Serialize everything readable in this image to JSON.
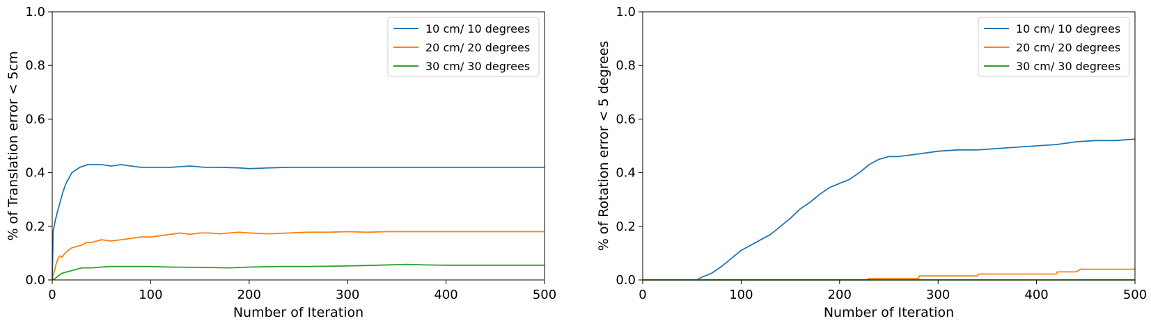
{
  "colors": {
    "c0": "#1f77b4",
    "c1": "#ff7f0e",
    "c2": "#2ca02c"
  },
  "chart_data": [
    {
      "type": "line",
      "xlabel": "Number of Iteration",
      "ylabel": "% of Translation error < 5cm",
      "xlim": [
        0,
        500
      ],
      "ylim": [
        0,
        1.0
      ],
      "xticks": [
        "0",
        "100",
        "200",
        "300",
        "400",
        "500"
      ],
      "yticks": [
        "0.0",
        "0.2",
        "0.4",
        "0.6",
        "0.8",
        "1.0"
      ],
      "grid": false,
      "legend_position": "top-right",
      "series": [
        {
          "name": "10 cm/ 10 degrees",
          "color": "#1f77b4",
          "x": [
            0,
            1,
            3,
            5,
            8,
            11,
            14,
            17,
            20,
            24,
            28,
            32,
            36,
            42,
            50,
            60,
            70,
            80,
            90,
            100,
            120,
            140,
            155,
            170,
            190,
            200,
            220,
            240,
            260,
            300,
            350,
            400,
            450,
            500
          ],
          "y": [
            0.0,
            0.18,
            0.22,
            0.25,
            0.29,
            0.33,
            0.36,
            0.38,
            0.4,
            0.41,
            0.42,
            0.425,
            0.43,
            0.43,
            0.43,
            0.425,
            0.43,
            0.425,
            0.42,
            0.42,
            0.42,
            0.425,
            0.42,
            0.42,
            0.418,
            0.415,
            0.418,
            0.42,
            0.42,
            0.42,
            0.42,
            0.42,
            0.42,
            0.42
          ]
        },
        {
          "name": "20 cm/ 20 degrees",
          "color": "#ff7f0e",
          "x": [
            0,
            2,
            4,
            6,
            8,
            10,
            13,
            16,
            20,
            25,
            30,
            35,
            40,
            50,
            60,
            70,
            80,
            90,
            100,
            110,
            120,
            130,
            140,
            150,
            160,
            170,
            180,
            190,
            200,
            220,
            240,
            260,
            280,
            300,
            320,
            340,
            360,
            380,
            400,
            420,
            450,
            480,
            500
          ],
          "y": [
            0.0,
            0.03,
            0.06,
            0.08,
            0.09,
            0.085,
            0.1,
            0.11,
            0.12,
            0.125,
            0.13,
            0.14,
            0.14,
            0.15,
            0.145,
            0.15,
            0.155,
            0.16,
            0.16,
            0.165,
            0.17,
            0.175,
            0.17,
            0.175,
            0.175,
            0.172,
            0.175,
            0.178,
            0.175,
            0.172,
            0.175,
            0.178,
            0.178,
            0.18,
            0.178,
            0.18,
            0.18,
            0.18,
            0.18,
            0.18,
            0.18,
            0.18,
            0.18
          ]
        },
        {
          "name": "30 cm/ 30 degrees",
          "color": "#2ca02c",
          "x": [
            0,
            3,
            6,
            10,
            15,
            20,
            25,
            30,
            40,
            50,
            60,
            80,
            100,
            120,
            150,
            180,
            200,
            230,
            260,
            300,
            330,
            360,
            380,
            400,
            450,
            500
          ],
          "y": [
            0.0,
            0.005,
            0.015,
            0.025,
            0.03,
            0.035,
            0.04,
            0.045,
            0.045,
            0.048,
            0.05,
            0.05,
            0.05,
            0.048,
            0.047,
            0.045,
            0.048,
            0.05,
            0.05,
            0.052,
            0.055,
            0.058,
            0.056,
            0.055,
            0.055,
            0.055
          ]
        }
      ]
    },
    {
      "type": "line",
      "xlabel": "Number of Iteration",
      "ylabel": "% of Rotation error < 5 degrees",
      "xlim": [
        0,
        500
      ],
      "ylim": [
        0,
        1.0
      ],
      "xticks": [
        "0",
        "100",
        "200",
        "300",
        "400",
        "500"
      ],
      "yticks": [
        "0.0",
        "0.2",
        "0.4",
        "0.6",
        "0.8",
        "1.0"
      ],
      "grid": false,
      "legend_position": "top-right",
      "series": [
        {
          "name": "10 cm/ 10 degrees",
          "color": "#1f77b4",
          "x": [
            0,
            55,
            60,
            70,
            80,
            90,
            100,
            110,
            120,
            130,
            140,
            150,
            160,
            170,
            180,
            190,
            200,
            210,
            220,
            230,
            240,
            250,
            260,
            270,
            280,
            290,
            300,
            320,
            340,
            360,
            380,
            400,
            420,
            440,
            460,
            480,
            500
          ],
          "y": [
            0.0,
            0.0,
            0.01,
            0.025,
            0.05,
            0.08,
            0.11,
            0.13,
            0.15,
            0.17,
            0.2,
            0.23,
            0.265,
            0.29,
            0.32,
            0.345,
            0.36,
            0.375,
            0.4,
            0.43,
            0.45,
            0.46,
            0.46,
            0.465,
            0.47,
            0.475,
            0.48,
            0.485,
            0.485,
            0.49,
            0.495,
            0.5,
            0.505,
            0.515,
            0.52,
            0.52,
            0.525
          ]
        },
        {
          "name": "20 cm/ 20 degrees",
          "color": "#ff7f0e",
          "x": [
            0,
            228,
            229,
            280,
            281,
            340,
            341,
            420,
            421,
            440,
            445,
            500
          ],
          "y": [
            0.0,
            0.0,
            0.005,
            0.005,
            0.015,
            0.015,
            0.022,
            0.022,
            0.03,
            0.03,
            0.04,
            0.04
          ]
        },
        {
          "name": "30 cm/ 30 degrees",
          "color": "#2ca02c",
          "x": [
            0,
            500
          ],
          "y": [
            0.0,
            0.0
          ]
        }
      ]
    }
  ]
}
